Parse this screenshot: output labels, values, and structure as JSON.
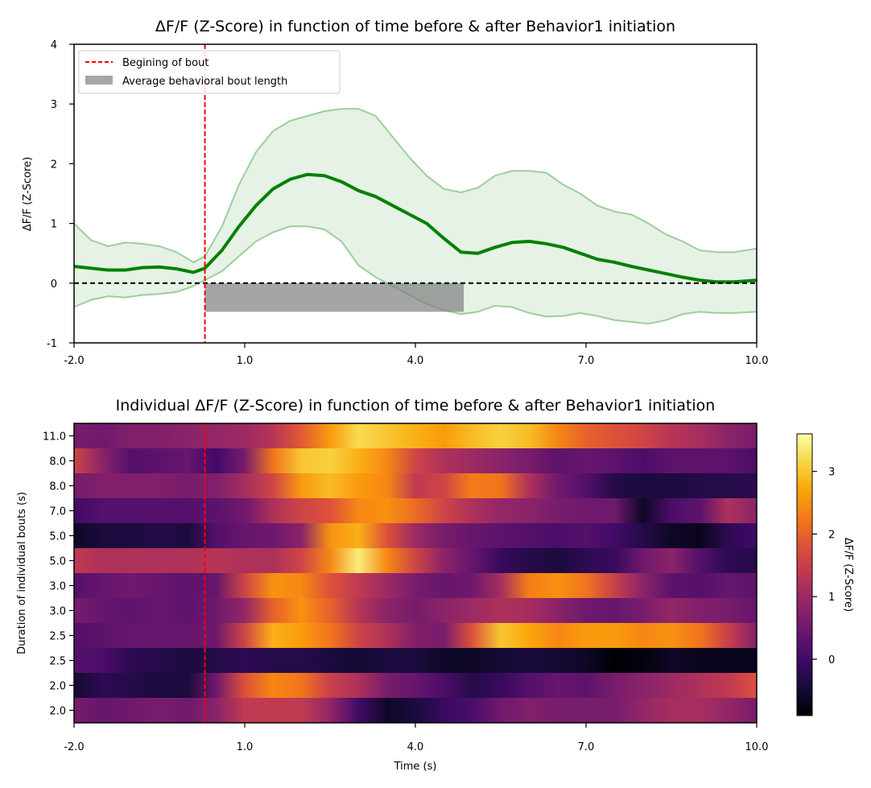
{
  "chart_data": [
    {
      "type": "line",
      "title": "ΔF/F (Z-Score) in function of time before & after Behavior1 initiation",
      "xlabel": "",
      "ylabel": "ΔF/F (Z-Score)",
      "xlim": [
        -2.0,
        10.0
      ],
      "ylim": [
        -1,
        4
      ],
      "x_ticks": [
        -2.0,
        1.0,
        4.0,
        7.0,
        10.0
      ],
      "x_tick_labels": [
        "-2.0",
        "1.0",
        "4.0",
        "7.0",
        "10.0"
      ],
      "y_ticks": [
        -1,
        0,
        1,
        2,
        3,
        4
      ],
      "y_tick_labels": [
        "-1",
        "0",
        "1",
        "2",
        "3",
        "4"
      ],
      "legend_position": "top-left",
      "legend": [
        {
          "label": "Begining of bout",
          "style": "red-dashed-line"
        },
        {
          "label": "Average behavioral bout length",
          "style": "gray-patch"
        }
      ],
      "bout_start": 0.3,
      "zero_line": 0,
      "avg_bout_bar": {
        "x_start": 0.3,
        "x_end": 4.85,
        "y_top": 0,
        "y_bottom": -0.48
      },
      "series": [
        {
          "color": "#008000",
          "x": [
            -2.0,
            -1.7,
            -1.4,
            -1.1,
            -0.8,
            -0.5,
            -0.2,
            0.1,
            0.3,
            0.6,
            0.9,
            1.2,
            1.5,
            1.8,
            2.1,
            2.4,
            2.7,
            3.0,
            3.3,
            3.6,
            3.9,
            4.2,
            4.5,
            4.8,
            5.1,
            5.4,
            5.7,
            6.0,
            6.3,
            6.6,
            6.9,
            7.2,
            7.5,
            7.8,
            8.1,
            8.4,
            8.7,
            9.0,
            9.3,
            9.6,
            10.0
          ],
          "y": [
            0.28,
            0.25,
            0.22,
            0.22,
            0.26,
            0.27,
            0.24,
            0.18,
            0.25,
            0.55,
            0.95,
            1.3,
            1.58,
            1.74,
            1.82,
            1.8,
            1.7,
            1.55,
            1.45,
            1.3,
            1.15,
            1.0,
            0.75,
            0.52,
            0.5,
            0.6,
            0.68,
            0.7,
            0.66,
            0.6,
            0.5,
            0.4,
            0.35,
            0.28,
            0.22,
            0.16,
            0.1,
            0.05,
            0.02,
            0.02,
            0.05
          ],
          "band_upper": [
            1.0,
            0.72,
            0.62,
            0.68,
            0.66,
            0.62,
            0.52,
            0.35,
            0.45,
            0.95,
            1.65,
            2.2,
            2.55,
            2.72,
            2.8,
            2.88,
            2.92,
            2.92,
            2.8,
            2.45,
            2.1,
            1.8,
            1.58,
            1.52,
            1.6,
            1.8,
            1.88,
            1.88,
            1.85,
            1.65,
            1.5,
            1.3,
            1.2,
            1.15,
            1.0,
            0.82,
            0.7,
            0.55,
            0.52,
            0.52,
            0.58
          ],
          "band_lower": [
            -0.4,
            -0.28,
            -0.22,
            -0.24,
            -0.2,
            -0.18,
            -0.15,
            -0.05,
            0.05,
            0.2,
            0.45,
            0.7,
            0.85,
            0.95,
            0.95,
            0.9,
            0.7,
            0.3,
            0.1,
            -0.05,
            -0.2,
            -0.35,
            -0.45,
            -0.52,
            -0.48,
            -0.38,
            -0.4,
            -0.5,
            -0.56,
            -0.55,
            -0.5,
            -0.55,
            -0.62,
            -0.65,
            -0.68,
            -0.62,
            -0.52,
            -0.48,
            -0.5,
            -0.5,
            -0.48
          ]
        }
      ]
    },
    {
      "type": "heatmap",
      "title": "Individual ΔF/F (Z-Score) in function of time before & after Behavior1 initiation",
      "xlabel": "Time (s)",
      "ylabel": "Duration of individual bouts (s)",
      "xlim": [
        -2.0,
        10.0
      ],
      "x_ticks": [
        -2.0,
        1.0,
        4.0,
        7.0,
        10.0
      ],
      "x_tick_labels": [
        "-2.0",
        "1.0",
        "4.0",
        "7.0",
        "10.0"
      ],
      "bout_start": 0.3,
      "row_labels": [
        "11.0",
        "8.0",
        "8.0",
        "7.0",
        "5.0",
        "5.0",
        "3.0",
        "3.0",
        "2.5",
        "2.5",
        "2.0",
        "2.0"
      ],
      "colormap": "inferno",
      "colorbar": {
        "label": "ΔF/F (Z-Score)",
        "min": -0.9,
        "max": 3.6,
        "ticks": [
          0,
          1,
          2,
          3
        ],
        "tick_labels": [
          "0",
          "1",
          "2",
          "3"
        ]
      },
      "x": [
        -2.0,
        -1.5,
        -1.0,
        -0.5,
        0.0,
        0.5,
        1.0,
        1.5,
        2.0,
        2.5,
        3.0,
        3.5,
        4.0,
        4.5,
        5.0,
        5.5,
        6.0,
        6.5,
        7.0,
        7.5,
        8.0,
        8.5,
        9.0,
        9.5,
        10.0
      ],
      "values": [
        [
          0.6,
          0.5,
          0.7,
          0.7,
          0.8,
          0.9,
          1.0,
          1.3,
          1.9,
          2.6,
          3.2,
          3.0,
          2.8,
          2.6,
          2.9,
          3.1,
          2.9,
          2.4,
          2.0,
          1.8,
          1.6,
          1.3,
          1.1,
          0.8,
          0.6
        ],
        [
          1.6,
          0.8,
          0.2,
          0.3,
          0.4,
          0.0,
          0.6,
          2.2,
          3.0,
          3.1,
          2.8,
          2.4,
          1.6,
          1.2,
          1.0,
          0.8,
          0.6,
          0.3,
          0.4,
          0.3,
          0.1,
          0.3,
          0.3,
          0.3,
          0.1
        ],
        [
          0.6,
          0.7,
          0.7,
          0.7,
          0.6,
          0.7,
          1.1,
          1.6,
          2.6,
          2.9,
          2.6,
          2.4,
          1.4,
          1.6,
          2.3,
          2.2,
          1.2,
          0.5,
          0.2,
          -0.3,
          -0.4,
          -0.4,
          -0.3,
          -0.3,
          -0.2
        ],
        [
          0.0,
          0.2,
          0.2,
          0.2,
          0.2,
          0.3,
          0.5,
          1.2,
          1.6,
          1.8,
          2.4,
          2.5,
          2.1,
          1.6,
          1.2,
          0.9,
          0.8,
          0.6,
          0.5,
          0.5,
          -0.6,
          0.1,
          0.3,
          1.2,
          0.8
        ],
        [
          -0.6,
          -0.4,
          -0.4,
          -0.3,
          -0.4,
          0.2,
          0.4,
          0.5,
          0.8,
          2.5,
          2.8,
          1.8,
          1.0,
          0.6,
          0.4,
          0.3,
          0.2,
          0.1,
          0.2,
          0.0,
          -0.3,
          -0.6,
          -0.7,
          -0.2,
          0.0
        ],
        [
          1.4,
          1.2,
          1.2,
          1.2,
          1.2,
          1.3,
          1.2,
          1.2,
          1.6,
          2.4,
          3.4,
          2.4,
          1.6,
          0.8,
          0.4,
          -0.1,
          -0.3,
          -0.4,
          -0.2,
          -0.1,
          0.5,
          0.8,
          0.2,
          -0.2,
          -0.3
        ],
        [
          0.2,
          0.4,
          0.5,
          0.4,
          0.3,
          0.4,
          1.6,
          2.5,
          2.4,
          1.8,
          1.4,
          1.0,
          0.6,
          0.4,
          0.5,
          1.1,
          2.3,
          2.5,
          2.2,
          1.5,
          0.8,
          0.3,
          0.2,
          0.4,
          0.3
        ],
        [
          0.6,
          0.4,
          0.3,
          0.4,
          0.3,
          0.5,
          0.9,
          2.0,
          2.5,
          2.0,
          1.3,
          0.8,
          0.6,
          0.8,
          1.0,
          1.2,
          1.1,
          0.8,
          0.5,
          0.4,
          0.6,
          0.9,
          0.7,
          0.6,
          0.4
        ],
        [
          0.2,
          0.3,
          0.4,
          0.4,
          0.4,
          0.5,
          1.6,
          2.8,
          2.6,
          2.2,
          1.6,
          1.2,
          0.7,
          0.6,
          1.8,
          3.0,
          2.7,
          2.4,
          2.6,
          2.6,
          2.4,
          2.5,
          2.2,
          1.5,
          0.7
        ],
        [
          0.2,
          0.1,
          -0.2,
          -0.3,
          -0.4,
          -0.3,
          -0.2,
          -0.3,
          -0.3,
          -0.4,
          -0.5,
          -0.4,
          -0.4,
          -0.6,
          -0.6,
          -0.5,
          -0.4,
          -0.5,
          -0.6,
          -0.9,
          -0.8,
          -0.6,
          -0.7,
          -0.7,
          -0.7
        ],
        [
          -0.5,
          -0.2,
          -0.3,
          -0.4,
          -0.4,
          0.5,
          1.8,
          2.4,
          2.2,
          1.5,
          1.2,
          0.6,
          0.4,
          0.1,
          -0.3,
          -0.1,
          0.2,
          0.4,
          0.3,
          0.6,
          0.8,
          1.0,
          1.2,
          1.4,
          1.8
        ],
        [
          0.6,
          0.4,
          0.5,
          0.6,
          0.5,
          0.8,
          1.4,
          1.4,
          1.4,
          0.9,
          0.0,
          -0.6,
          -0.4,
          -0.1,
          0.1,
          0.5,
          0.7,
          0.6,
          0.6,
          0.6,
          0.9,
          1.1,
          1.1,
          0.9,
          0.6
        ]
      ]
    }
  ]
}
